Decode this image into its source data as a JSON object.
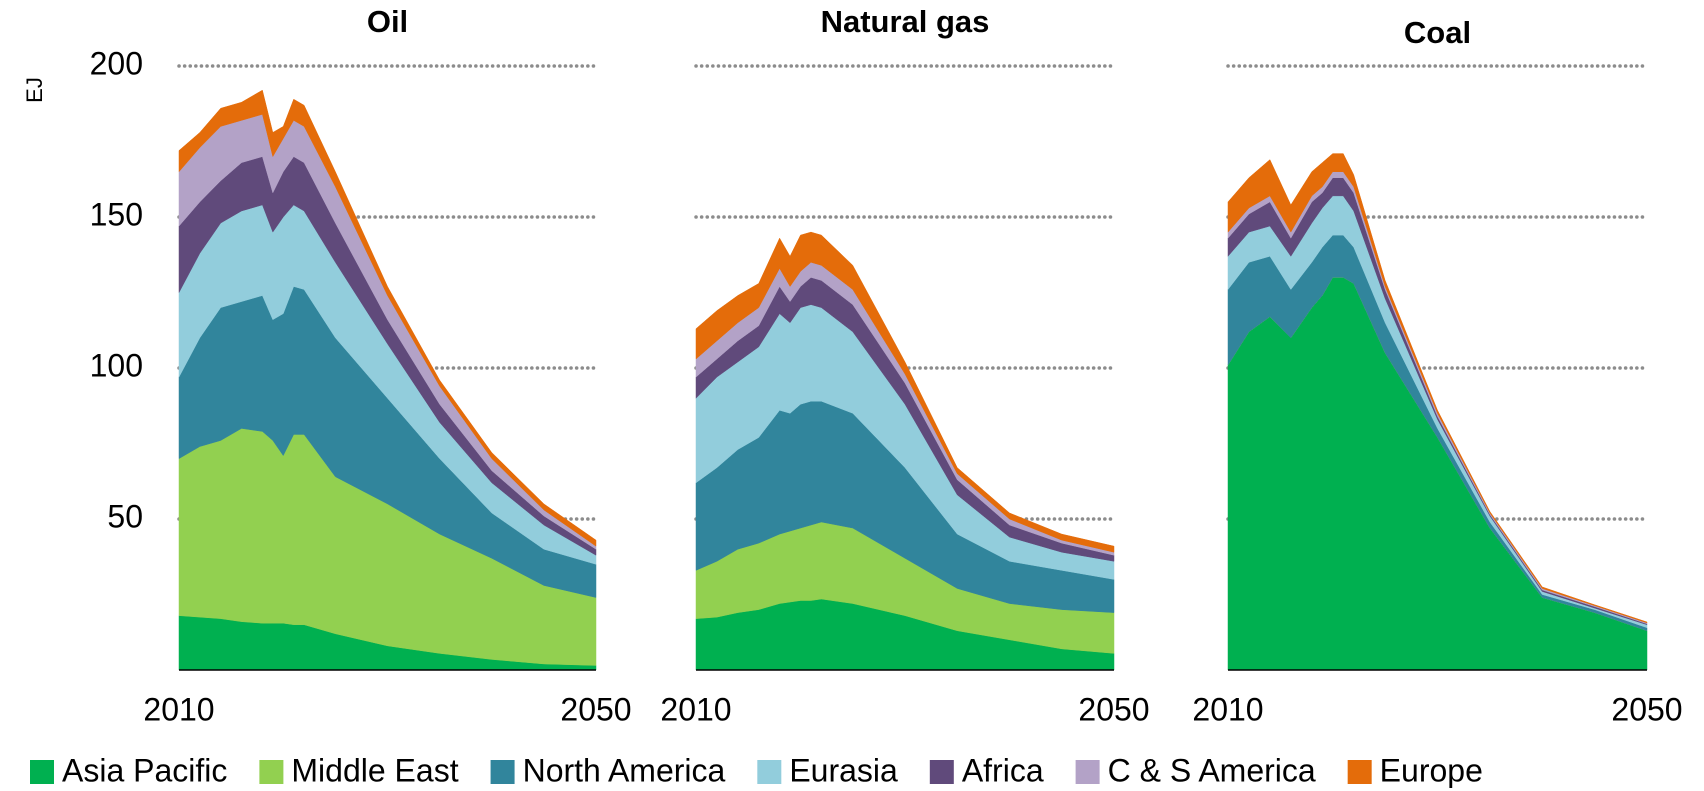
{
  "chart_data": [
    {
      "type": "area",
      "title": "Oil",
      "ylabel": "EJ",
      "x": [
        2010,
        2012,
        2014,
        2016,
        2018,
        2019,
        2020,
        2021,
        2022,
        2025,
        2030,
        2035,
        2040,
        2045,
        2050
      ],
      "xlim": [
        2010,
        2050
      ],
      "xticks": [
        2010,
        2050
      ],
      "ylim": [
        0,
        200
      ],
      "yticks": [
        50,
        100,
        150,
        200
      ],
      "grid": true,
      "series": [
        {
          "name": "Asia Pacific",
          "color": "#00b050",
          "values": [
            18,
            17.5,
            17,
            16,
            15.5,
            15.5,
            15.5,
            15,
            15,
            12,
            8,
            5.5,
            3.5,
            2,
            1.5
          ]
        },
        {
          "name": "Middle East",
          "color": "#92d050",
          "values": [
            52,
            56.5,
            59,
            64,
            63.5,
            60.5,
            55.5,
            63,
            63,
            52,
            47,
            39.5,
            33.5,
            26,
            22.5
          ]
        },
        {
          "name": "North America",
          "color": "#31859c",
          "values": [
            27,
            36,
            44,
            42,
            45,
            40,
            47,
            49,
            48,
            46,
            35,
            25,
            15,
            12,
            11
          ]
        },
        {
          "name": "Eurasia",
          "color": "#92cddc",
          "values": [
            28,
            28,
            28,
            30,
            30,
            29,
            32,
            27,
            26,
            25,
            18,
            12,
            10,
            8,
            3
          ]
        },
        {
          "name": "Africa",
          "color": "#604a7b",
          "values": [
            22,
            17,
            14,
            16,
            16,
            13,
            15,
            16,
            16,
            13,
            8,
            6,
            4,
            3,
            2
          ]
        },
        {
          "name": "C & S America",
          "color": "#b3a2c7",
          "values": [
            18,
            18,
            18,
            14,
            14,
            12,
            11,
            12,
            12,
            12,
            8,
            6,
            4,
            2,
            1
          ]
        },
        {
          "name": "Europe",
          "color": "#e46c0a",
          "values": [
            7,
            5,
            6,
            6,
            8,
            8,
            4,
            7,
            7,
            5,
            3,
            2,
            2,
            2,
            2
          ]
        }
      ]
    },
    {
      "type": "area",
      "title": "Natural gas",
      "x": [
        2010,
        2012,
        2014,
        2016,
        2018,
        2019,
        2020,
        2021,
        2022,
        2025,
        2030,
        2035,
        2040,
        2045,
        2050
      ],
      "xlim": [
        2010,
        2050
      ],
      "xticks": [
        2010,
        2050
      ],
      "ylim": [
        0,
        200
      ],
      "grid": true,
      "series": [
        {
          "name": "Asia Pacific",
          "color": "#00b050",
          "values": [
            17,
            17.5,
            19,
            20,
            22,
            22.5,
            23,
            23,
            23.5,
            22,
            18,
            13,
            10,
            7,
            5.5
          ]
        },
        {
          "name": "Middle East",
          "color": "#92d050",
          "values": [
            16,
            18.5,
            21,
            22,
            23,
            23.5,
            24,
            25,
            25.5,
            25,
            19,
            14,
            12,
            13,
            13.5
          ]
        },
        {
          "name": "North America",
          "color": "#31859c",
          "values": [
            29,
            31,
            33,
            35,
            41,
            39,
            41,
            41,
            40,
            38,
            30,
            18,
            14,
            13,
            11
          ]
        },
        {
          "name": "Eurasia",
          "color": "#92cddc",
          "values": [
            28,
            30,
            29,
            30,
            32,
            30,
            32,
            32,
            31,
            27,
            21,
            13,
            8,
            6,
            6
          ]
        },
        {
          "name": "Africa",
          "color": "#604a7b",
          "values": [
            7,
            6,
            7,
            7,
            9,
            7,
            7,
            9,
            9,
            9,
            7,
            5,
            4,
            3,
            2
          ]
        },
        {
          "name": "C & S America",
          "color": "#b3a2c7",
          "values": [
            6,
            6,
            6,
            6,
            6,
            5,
            5,
            5,
            5,
            5,
            3,
            2,
            2,
            1,
            1
          ]
        },
        {
          "name": "Europe",
          "color": "#e46c0a",
          "values": [
            10,
            10,
            9,
            8,
            10,
            10,
            12,
            10,
            10,
            8,
            4,
            2,
            2,
            2,
            2
          ]
        }
      ]
    },
    {
      "type": "area",
      "title": "Coal",
      "x": [
        2010,
        2012,
        2014,
        2016,
        2018,
        2019,
        2020,
        2021,
        2022,
        2025,
        2030,
        2035,
        2040,
        2045,
        2050
      ],
      "xlim": [
        2010,
        2050
      ],
      "xticks": [
        2010,
        2050
      ],
      "ylim": [
        0,
        200
      ],
      "grid": true,
      "series": [
        {
          "name": "Asia Pacific",
          "color": "#00b050",
          "values": [
            101,
            112,
            117,
            110,
            120,
            124,
            130,
            130,
            128,
            105,
            77,
            47,
            24,
            19,
            13
          ]
        },
        {
          "name": "Middle East",
          "color": "#92d050",
          "values": [
            0,
            0,
            0,
            0,
            0,
            0,
            0,
            0,
            0,
            0,
            0,
            0,
            0,
            0,
            0
          ]
        },
        {
          "name": "North America",
          "color": "#31859c",
          "values": [
            25,
            23,
            20,
            16,
            15,
            16,
            14,
            14,
            12,
            10,
            3,
            2,
            1,
            1,
            1
          ]
        },
        {
          "name": "Eurasia",
          "color": "#92cddc",
          "values": [
            11,
            10,
            10,
            11,
            13,
            13,
            13,
            13,
            12,
            8,
            3,
            2,
            1,
            0.5,
            1
          ]
        },
        {
          "name": "Africa",
          "color": "#604a7b",
          "values": [
            6,
            6,
            8,
            6,
            7,
            5,
            6,
            6,
            6,
            3,
            1,
            0.5,
            0.5,
            0.5,
            0.3
          ]
        },
        {
          "name": "C & S America",
          "color": "#b3a2c7",
          "values": [
            2,
            2,
            2,
            2,
            2,
            2,
            2,
            2,
            2,
            1,
            1,
            0.5,
            0.5,
            0.3,
            0.3
          ]
        },
        {
          "name": "Europe",
          "color": "#e46c0a",
          "values": [
            10,
            10,
            12,
            9,
            8,
            8,
            6,
            6,
            4,
            2,
            1,
            0.5,
            0.5,
            0.3,
            0.3
          ]
        }
      ]
    }
  ]
}
